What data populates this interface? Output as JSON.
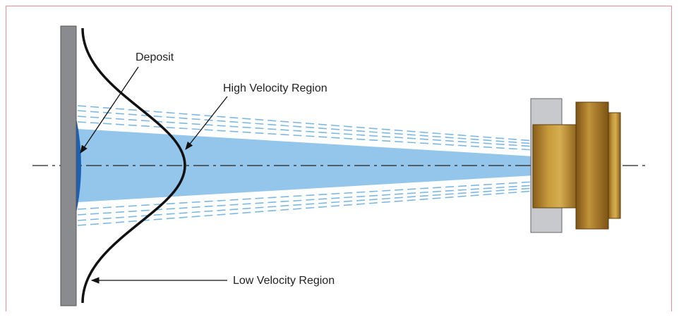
{
  "labels": {
    "deposit": "Deposit",
    "high_velocity": "High Velocity Region",
    "low_velocity": "Low Velocity Region"
  },
  "colors": {
    "border": "#e88f94",
    "wall": "#8a8b8e",
    "spray": "#93c6ea",
    "spray_dash": "#7db8e3",
    "deposit": "#1f5fb0",
    "nozzle_brass": "#b8862a",
    "nozzle_gray": "#c8c9cc",
    "curve": "#111111"
  }
}
